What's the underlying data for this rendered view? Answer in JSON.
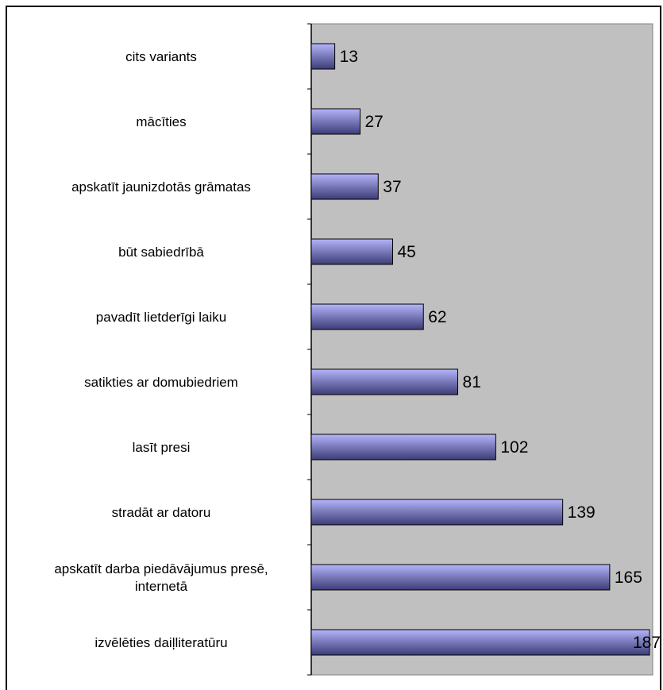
{
  "chart_data": {
    "type": "bar",
    "orientation": "horizontal",
    "title": "",
    "xlabel": "",
    "ylabel": "",
    "xlim": [
      0,
      187
    ],
    "grid": false,
    "legend": "none",
    "categories": [
      [
        "cits variants"
      ],
      [
        "mācīties"
      ],
      [
        "apskatīt jaunizdotās grāmatas"
      ],
      [
        "būt sabiedrībā"
      ],
      [
        "pavadīt lietderīgi laiku"
      ],
      [
        "satikties ar domubiedriem"
      ],
      [
        "lasīt presi"
      ],
      [
        "stradāt ar datoru"
      ],
      [
        "apskatīt darba piedāvājumus presē,",
        "internetā"
      ],
      [
        "izvēlēties daiļliteratūru"
      ]
    ],
    "values": [
      13,
      27,
      37,
      45,
      62,
      81,
      102,
      139,
      165,
      187
    ],
    "colors": {
      "plot_area": "#c0c0c0",
      "bar_light": "#b4b4fa",
      "bar_dark": "#3c3c78",
      "bar_border": "#000000",
      "frame": "#000000"
    }
  }
}
